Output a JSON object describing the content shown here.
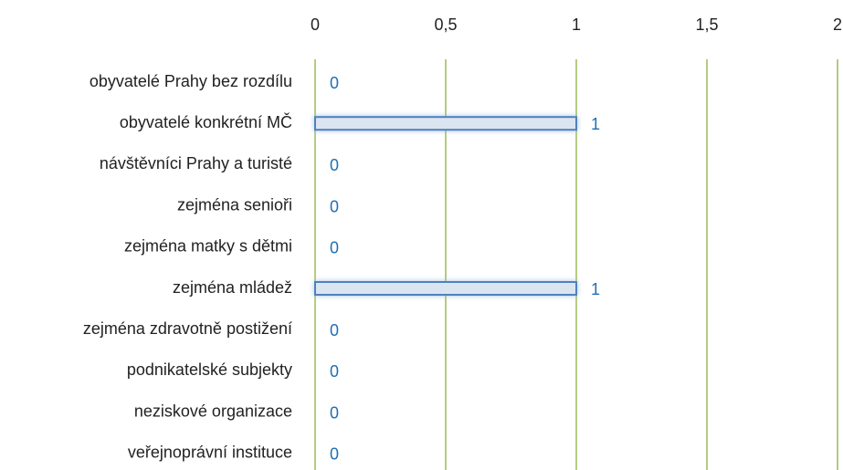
{
  "chart_data": {
    "type": "hbar",
    "categories": [
      "obyvatelé Prahy bez rozdílu",
      "obyvatelé konkrétní MČ",
      "návštěvníci Prahy a turisté",
      "zejména senioři",
      "zejména matky s dětmi",
      "zejména mládež",
      "zejména zdravotně postižení",
      "podnikatelské subjekty",
      "neziskové organizace",
      "veřejnoprávní instituce"
    ],
    "values": [
      0,
      1,
      0,
      0,
      0,
      1,
      0,
      0,
      0,
      0
    ],
    "color": "#dbe5f1",
    "edge_color": "#4f81bd",
    "label_color": "#1f6fb5",
    "grid_color": "#9bbb59",
    "xlim": [
      0,
      2
    ],
    "xticks": [
      0,
      {
        "value": 0.5,
        "label": "0,5"
      },
      1,
      {
        "value": 1.5,
        "label": "1,5"
      },
      2
    ],
    "grid": true
  }
}
